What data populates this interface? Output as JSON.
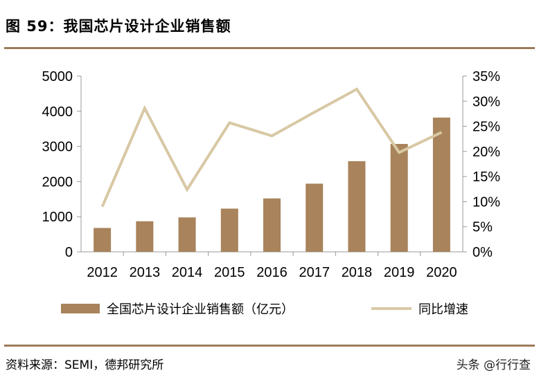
{
  "title": "图 59：我国芯片设计企业销售额",
  "source": "资料来源：SEMI，德邦研究所",
  "corner_mark": "头条 @行行查",
  "colors": {
    "bar": "#a8835b",
    "line": "#d8c8a4",
    "rule": "#9c7b5a",
    "axis": "#999999"
  },
  "chart_data": {
    "type": "bar",
    "categories": [
      "2012",
      "2013",
      "2014",
      "2015",
      "2016",
      "2017",
      "2018",
      "2019",
      "2020"
    ],
    "series": [
      {
        "name": "全国芯片设计企业销售额（亿元）",
        "type": "bar",
        "axis": "left",
        "values": [
          680,
          870,
          980,
          1230,
          1520,
          1940,
          2580,
          3070,
          3820
        ]
      },
      {
        "name": "同比增速",
        "type": "line",
        "axis": "right",
        "values": [
          9.0,
          28.6,
          12.4,
          25.7,
          23.1,
          27.8,
          32.4,
          19.8,
          23.8
        ]
      }
    ],
    "y_left": {
      "ticks": [
        "0",
        "1000",
        "2000",
        "3000",
        "4000",
        "5000"
      ],
      "lim": [
        0,
        5000
      ]
    },
    "y_right": {
      "ticks": [
        "0%",
        "5%",
        "10%",
        "15%",
        "20%",
        "25%",
        "30%",
        "35%"
      ],
      "lim": [
        0,
        35
      ]
    },
    "legend": "bottom",
    "grid": false
  }
}
